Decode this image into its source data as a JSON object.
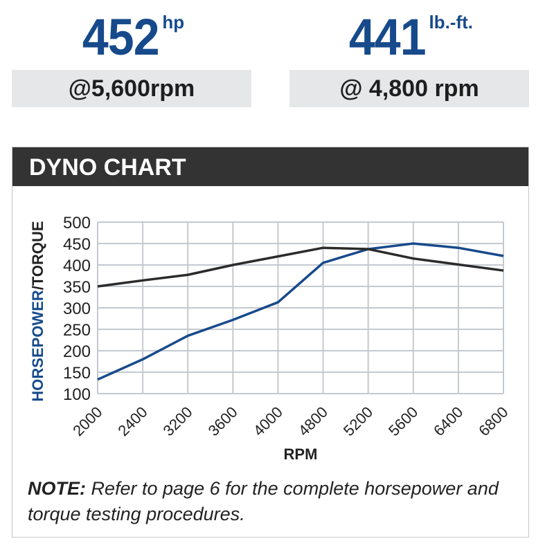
{
  "hp": {
    "value": "452",
    "unit": "hp",
    "at": "@5,600rpm"
  },
  "torque": {
    "value": "441",
    "unit": "lb.-ft.",
    "at": "@ 4,800 rpm"
  },
  "panel_title": "DYNO CHART",
  "note": {
    "label": "NOTE:",
    "text": " Refer to page 6 for the complete horsepower and torque testing procedures."
  },
  "colors": {
    "accent": "#174a8b",
    "torque_line": "#2b2b2b",
    "grid": "#c4c9cf"
  },
  "chart_data": {
    "type": "line",
    "title": "",
    "xlabel": "RPM",
    "ylabel": "HORSEPOWER/TORQUE",
    "ylabel_parts": [
      "HORSEPOWER",
      "/TORQUE"
    ],
    "categories": [
      "2000",
      "2400",
      "3200",
      "3600",
      "4000",
      "4800",
      "5200",
      "5600",
      "6400",
      "6800"
    ],
    "yticks": [
      100,
      150,
      200,
      250,
      300,
      350,
      400,
      450,
      500
    ],
    "ylim": [
      100,
      500
    ],
    "grid": true,
    "series": [
      {
        "key": "horsepower",
        "color": "#174a8b",
        "values": [
          133,
          180,
          235,
          272,
          313,
          405,
          437,
          450,
          440,
          421
        ]
      },
      {
        "key": "torque",
        "color": "#2b2b2b",
        "values": [
          350,
          364,
          377,
          400,
          420,
          440,
          437,
          415,
          401,
          387
        ]
      }
    ]
  }
}
